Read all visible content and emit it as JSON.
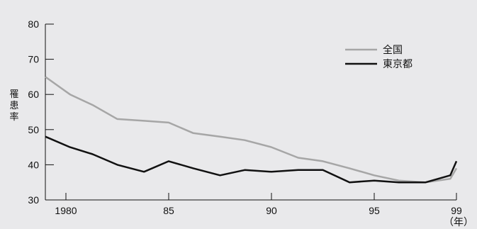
{
  "chart_data": {
    "type": "line",
    "ylabel": "罹患率",
    "xunit_label": "（年）",
    "ylim": [
      30,
      80
    ],
    "xlim": [
      1979,
      1999
    ],
    "yticks": [
      30,
      40,
      50,
      60,
      70,
      80
    ],
    "xticks": [
      {
        "value": 1980,
        "label": "1980"
      },
      {
        "value": 1985,
        "label": "85"
      },
      {
        "value": 1990,
        "label": "90"
      },
      {
        "value": 1995,
        "label": "95"
      },
      {
        "value": 1999,
        "label": "99"
      }
    ],
    "legend_position": "top-right",
    "series": [
      {
        "name": "全国",
        "color": "#a6a6a6",
        "x": [
          1979,
          1980.2,
          1981.3,
          1982.5,
          1983.8,
          1985,
          1986.2,
          1987.5,
          1988.7,
          1990,
          1991.3,
          1992.5,
          1993.8,
          1995,
          1996.2,
          1997.5,
          1998.7,
          1999
        ],
        "y": [
          65,
          60,
          57,
          53,
          52.5,
          52,
          49,
          48,
          47,
          45,
          42,
          41,
          39,
          37,
          35.5,
          35,
          36,
          39
        ]
      },
      {
        "name": "東京都",
        "color": "#111111",
        "x": [
          1979,
          1980.2,
          1981.3,
          1982.5,
          1983.8,
          1985,
          1986.2,
          1987.5,
          1988.7,
          1990,
          1991.3,
          1992.5,
          1993.8,
          1995,
          1996.2,
          1997.5,
          1998.7,
          1999
        ],
        "y": [
          48,
          45,
          43,
          40,
          38,
          41,
          39,
          37,
          38.5,
          38,
          38.5,
          38.5,
          35,
          35.5,
          35,
          35,
          37,
          41
        ]
      }
    ]
  }
}
